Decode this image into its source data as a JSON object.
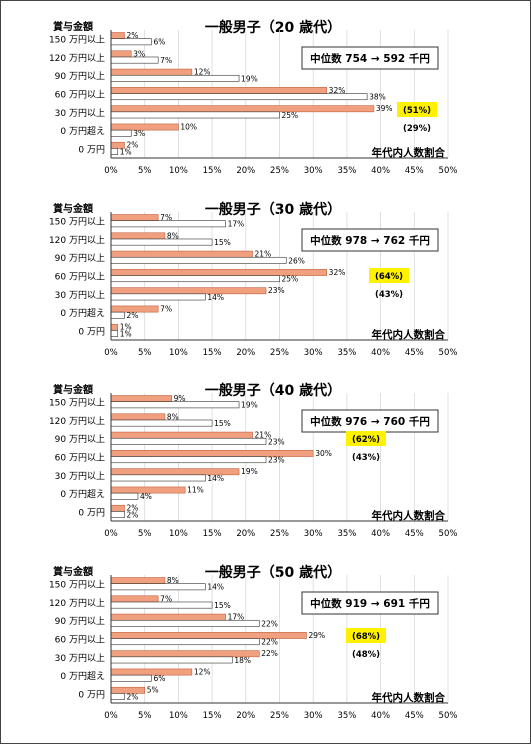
{
  "chart_data": [
    {
      "type": "bar",
      "title": "一般男子（20 歳代）",
      "category_header": "賞与金額",
      "categories": [
        "150 万円以上",
        "120 万円以上",
        "90 万円以上",
        "60 万円以上",
        "30 万円以上",
        "0 万円超え",
        "0 万円"
      ],
      "series": [
        {
          "values": [
            2,
            3,
            12,
            32,
            39,
            10,
            2
          ],
          "labels": [
            "2%",
            "3%",
            "12%",
            "32%",
            "39%",
            "10%",
            "2%"
          ]
        },
        {
          "values": [
            6,
            7,
            19,
            38,
            25,
            3,
            1
          ],
          "labels": [
            "6%",
            "7%",
            "19%",
            "38%",
            "25%",
            "3%",
            "1%"
          ]
        }
      ],
      "median_box": "中位数 754 → 592 千円",
      "highlight": "(51%)",
      "highlight_sub": "(29%)",
      "footer": "年代内人数割合",
      "xticks": [
        "0%",
        "5%",
        "10%",
        "15%",
        "20%",
        "25%",
        "30%",
        "35%",
        "40%",
        "45%",
        "50%"
      ],
      "xlim": [
        0,
        50
      ],
      "grid": true,
      "colors": {
        "series1": "#F0A07E",
        "series1_border": "#C0623F",
        "series2": "#FFFFFF",
        "highlight": "#FFF200"
      }
    },
    {
      "type": "bar",
      "title": "一般男子（30 歳代）",
      "category_header": "賞与金額",
      "categories": [
        "150 万円以上",
        "120 万円以上",
        "90 万円以上",
        "60 万円以上",
        "30 万円以上",
        "0 万円超え",
        "0 万円"
      ],
      "series": [
        {
          "values": [
            7,
            8,
            21,
            32,
            23,
            7,
            1
          ],
          "labels": [
            "7%",
            "8%",
            "21%",
            "32%",
            "23%",
            "7%",
            "1%"
          ]
        },
        {
          "values": [
            17,
            15,
            26,
            25,
            14,
            2,
            1
          ],
          "labels": [
            "17%",
            "15%",
            "26%",
            "25%",
            "14%",
            "2%",
            "1%"
          ]
        }
      ],
      "median_box": "中位数 978 → 762 千円",
      "highlight": "(64%)",
      "highlight_sub": "(43%)",
      "footer": "年代内人数割合",
      "xticks": [
        "0%",
        "5%",
        "10%",
        "15%",
        "20%",
        "25%",
        "30%",
        "35%",
        "40%",
        "45%",
        "50%"
      ],
      "xlim": [
        0,
        50
      ],
      "grid": true,
      "colors": {
        "series1": "#F0A07E",
        "series1_border": "#C0623F",
        "series2": "#FFFFFF",
        "highlight": "#FFF200"
      }
    },
    {
      "type": "bar",
      "title": "一般男子（40 歳代）",
      "category_header": "賞与金額",
      "categories": [
        "150 万円以上",
        "120 万円以上",
        "90 万円以上",
        "60 万円以上",
        "30 万円以上",
        "0 万円超え",
        "0 万円"
      ],
      "series": [
        {
          "values": [
            9,
            8,
            21,
            30,
            19,
            11,
            2
          ],
          "labels": [
            "9%",
            "8%",
            "21%",
            "30%",
            "19%",
            "11%",
            "2%"
          ]
        },
        {
          "values": [
            19,
            15,
            23,
            23,
            14,
            4,
            2
          ],
          "labels": [
            "19%",
            "15%",
            "23%",
            "23%",
            "14%",
            "4%",
            "2%"
          ]
        }
      ],
      "median_box": "中位数 976 → 760 千円",
      "highlight": "(62%)",
      "highlight_sub": "(43%)",
      "footer": "年代内人数割合",
      "xticks": [
        "0%",
        "5%",
        "10%",
        "15%",
        "20%",
        "25%",
        "30%",
        "35%",
        "40%",
        "45%",
        "50%"
      ],
      "xlim": [
        0,
        50
      ],
      "grid": true,
      "colors": {
        "series1": "#F0A07E",
        "series1_border": "#C0623F",
        "series2": "#FFFFFF",
        "highlight": "#FFF200"
      }
    },
    {
      "type": "bar",
      "title": "一般男子（50 歳代）",
      "category_header": "賞与金額",
      "categories": [
        "150 万円以上",
        "120 万円以上",
        "90 万円以上",
        "60 万円以上",
        "30 万円以上",
        "0 万円超え",
        "0 万円"
      ],
      "series": [
        {
          "values": [
            8,
            7,
            17,
            29,
            22,
            12,
            5
          ],
          "labels": [
            "8%",
            "7%",
            "17%",
            "29%",
            "22%",
            "12%",
            "5%"
          ]
        },
        {
          "values": [
            14,
            15,
            22,
            22,
            18,
            6,
            2
          ],
          "labels": [
            "14%",
            "15%",
            "22%",
            "22%",
            "18%",
            "6%",
            "2%"
          ]
        }
      ],
      "median_box": "中位数 919 → 691 千円",
      "highlight": "(68%)",
      "highlight_sub": "(48%)",
      "footer": "年代内人数割合",
      "xticks": [
        "0%",
        "5%",
        "10%",
        "15%",
        "20%",
        "25%",
        "30%",
        "35%",
        "40%",
        "45%",
        "50%"
      ],
      "xlim": [
        0,
        50
      ],
      "grid": true,
      "colors": {
        "series1": "#F0A07E",
        "series1_border": "#C0623F",
        "series2": "#FFFFFF",
        "highlight": "#FFF200"
      }
    }
  ]
}
